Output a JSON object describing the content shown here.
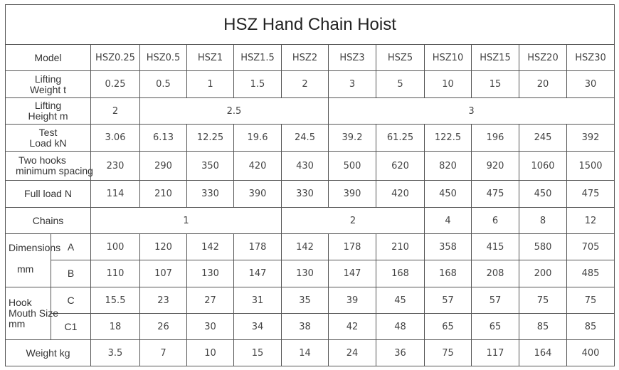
{
  "title": "HSZ Hand Chain Hoist",
  "model_label": "Model",
  "models": [
    "HSZ0.25",
    "HSZ0.5",
    "HSZ1",
    "HSZ1.5",
    "HSZ2",
    "HSZ3",
    "HSZ5",
    "HSZ10",
    "HSZ15",
    "HSZ20",
    "HSZ30"
  ],
  "rows": {
    "lifting_weight": {
      "label1": "Lifting",
      "label2": "Weight t",
      "values": [
        "0.25",
        "0.5",
        "1",
        "1.5",
        "2",
        "3",
        "5",
        "10",
        "15",
        "20",
        "30"
      ]
    },
    "lifting_height": {
      "label1": "Lifting",
      "label2": "Height m",
      "values": [
        "2",
        "2.5",
        "3"
      ]
    },
    "test_load": {
      "label1": "Test",
      "label2": "Load kN",
      "values": [
        "3.06",
        "6.13",
        "12.25",
        "19.6",
        "24.5",
        "39.2",
        "61.25",
        "122.5",
        "196",
        "245",
        "392"
      ]
    },
    "two_hooks": {
      "label1": "Two hooks",
      "label2": "minimum spacing",
      "values": [
        "230",
        "290",
        "350",
        "420",
        "430",
        "500",
        "620",
        "820",
        "920",
        "1060",
        "1500"
      ]
    },
    "full_load": {
      "label": "Full load N",
      "values": [
        "114",
        "210",
        "330",
        "390",
        "330",
        "390",
        "420",
        "450",
        "475",
        "450",
        "475"
      ]
    },
    "chains": {
      "label": "Chains",
      "values": [
        "1",
        "2",
        "4",
        "6",
        "8",
        "12"
      ]
    },
    "dimensions": {
      "label1": "Dimensions",
      "label2": "mm",
      "A": {
        "label": "A",
        "values": [
          "100",
          "120",
          "142",
          "178",
          "142",
          "178",
          "210",
          "358",
          "415",
          "580",
          "705"
        ]
      },
      "B": {
        "label": "B",
        "values": [
          "110",
          "107",
          "130",
          "147",
          "130",
          "147",
          "168",
          "168",
          "208",
          "200",
          "485"
        ]
      }
    },
    "hook_mouth": {
      "label1": "Hook",
      "label2": "Mouth Size",
      "label3": "mm",
      "C": {
        "label": "C",
        "values": [
          "15.5",
          "23",
          "27",
          "31",
          "35",
          "39",
          "45",
          "57",
          "57",
          "75",
          "75"
        ]
      },
      "C1": {
        "label": "C1",
        "values": [
          "18",
          "26",
          "30",
          "34",
          "38",
          "42",
          "48",
          "65",
          "65",
          "85",
          "85"
        ]
      }
    },
    "weight": {
      "label": "Weight kg",
      "values": [
        "3.5",
        "7",
        "10",
        "15",
        "14",
        "24",
        "36",
        "75",
        "117",
        "164",
        "400"
      ]
    }
  }
}
